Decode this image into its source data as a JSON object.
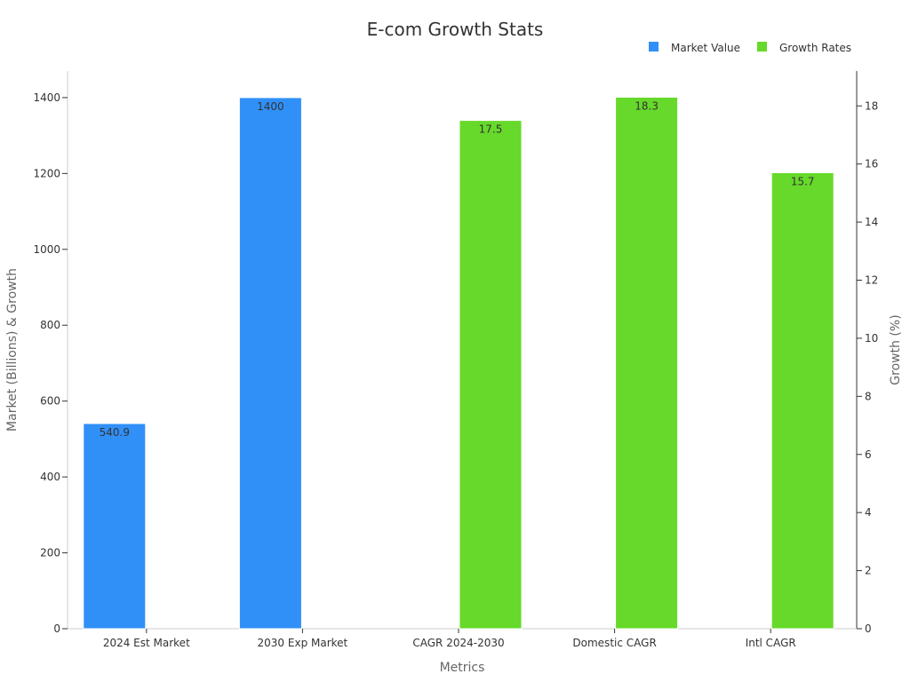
{
  "chart_data": {
    "type": "bar",
    "title": "E-com Growth Stats",
    "xlabel": "Metrics",
    "ylabel": "Market (Billions) & Growth",
    "y2label": "Growth (%)",
    "categories": [
      "2024 Est Market",
      "2030 Exp Market",
      "CAGR 2024-2030",
      "Domestic CAGR",
      "Intl CAGR"
    ],
    "ylim": [
      0,
      1470
    ],
    "y2lim": [
      0,
      19.2
    ],
    "yticks": [
      0,
      200,
      400,
      600,
      800,
      1000,
      1200,
      1400
    ],
    "y2ticks": [
      0,
      2,
      4,
      6,
      8,
      10,
      12,
      14,
      16,
      18
    ],
    "legend_position": "top-right",
    "grid": false,
    "series": [
      {
        "name": "Market Value",
        "axis": "left",
        "color": "#3090f8",
        "values": [
          540.9,
          1400,
          null,
          null,
          null
        ],
        "labels": [
          "540.9",
          "1400",
          "",
          "",
          ""
        ]
      },
      {
        "name": "Growth Rates",
        "axis": "right",
        "color": "#66d92a",
        "values": [
          null,
          null,
          17.5,
          18.3,
          15.7
        ],
        "labels": [
          "",
          "",
          "17.5",
          "18.3",
          "15.7"
        ]
      }
    ]
  }
}
